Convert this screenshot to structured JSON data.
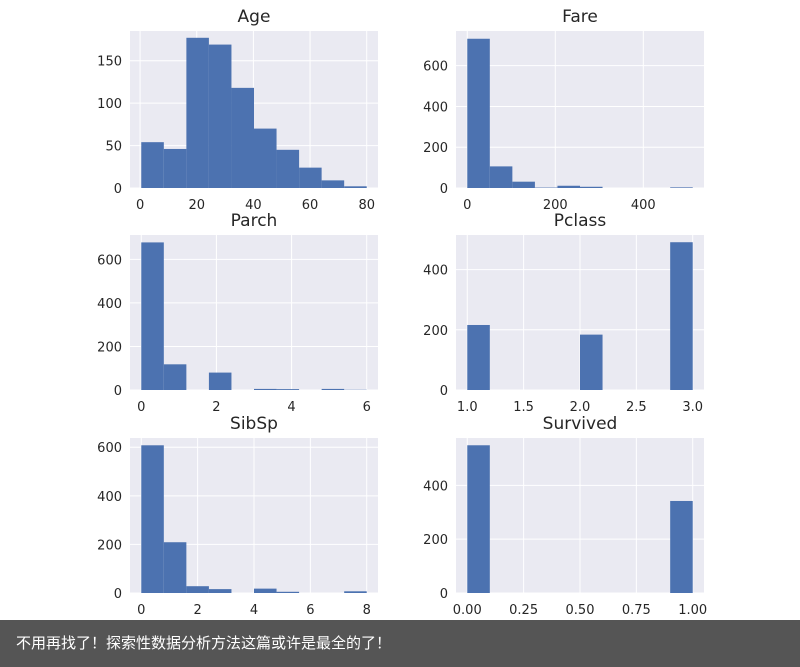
{
  "chart_data": [
    {
      "type": "bar",
      "title": "Age",
      "bin_edges": [
        0.42,
        8.38,
        16.34,
        24.29,
        32.25,
        40.21,
        48.17,
        56.13,
        64.08,
        72.04,
        80.0
      ],
      "values": [
        54,
        46,
        177,
        169,
        118,
        70,
        45,
        24,
        9,
        2
      ],
      "xlim": [
        -3.56,
        83.98
      ],
      "ylim": [
        0,
        185
      ],
      "xticks": [
        0,
        20,
        40,
        60,
        80
      ],
      "yticks": [
        0,
        50,
        100,
        150
      ],
      "xtick_labels": [
        "0",
        "20",
        "40",
        "60",
        "80"
      ],
      "ytick_labels": [
        "0",
        "50",
        "100",
        "150"
      ],
      "color": "#4c72b0",
      "grid": true
    },
    {
      "type": "bar",
      "title": "Fare",
      "bin_edges": [
        0,
        51.23,
        102.47,
        153.7,
        204.93,
        256.16,
        307.4,
        358.63,
        409.86,
        461.1,
        512.33
      ],
      "values": [
        732,
        106,
        31,
        2,
        11,
        6,
        0,
        0,
        0,
        3
      ],
      "xlim": [
        -25.6,
        537.9
      ],
      "ylim": [
        0,
        770
      ],
      "xticks": [
        0,
        200,
        400
      ],
      "yticks": [
        0,
        200,
        400,
        600
      ],
      "xtick_labels": [
        "0",
        "200",
        "400"
      ],
      "ytick_labels": [
        "0",
        "200",
        "400",
        "600"
      ],
      "color": "#4c72b0",
      "grid": true
    },
    {
      "type": "bar",
      "title": "Parch",
      "bin_edges": [
        0,
        0.6,
        1.2,
        1.8,
        2.4,
        3.0,
        3.6,
        4.2,
        4.8,
        5.4,
        6.0
      ],
      "values": [
        678,
        118,
        0,
        80,
        0,
        5,
        4,
        0,
        5,
        1
      ],
      "xlim": [
        -0.3,
        6.3
      ],
      "ylim": [
        0,
        712
      ],
      "xticks": [
        0,
        2,
        4,
        6
      ],
      "yticks": [
        0,
        200,
        400,
        600
      ],
      "xtick_labels": [
        "0",
        "2",
        "4",
        "6"
      ],
      "ytick_labels": [
        "0",
        "200",
        "400",
        "600"
      ],
      "color": "#4c72b0",
      "grid": true
    },
    {
      "type": "bar",
      "title": "Pclass",
      "bin_edges": [
        1.0,
        1.2,
        1.4,
        1.6,
        1.8,
        2.0,
        2.2,
        2.4,
        2.6,
        2.8,
        3.0
      ],
      "values": [
        216,
        0,
        0,
        0,
        0,
        184,
        0,
        0,
        0,
        491
      ],
      "xlim": [
        0.9,
        3.1
      ],
      "ylim": [
        0,
        515
      ],
      "xticks": [
        1.0,
        1.5,
        2.0,
        2.5,
        3.0
      ],
      "yticks": [
        0,
        200,
        400
      ],
      "xtick_labels": [
        "1.0",
        "1.5",
        "2.0",
        "2.5",
        "3.0"
      ],
      "ytick_labels": [
        "0",
        "200",
        "400"
      ],
      "color": "#4c72b0",
      "grid": true
    },
    {
      "type": "bar",
      "title": "SibSp",
      "bin_edges": [
        0,
        0.8,
        1.6,
        2.4,
        3.2,
        4.0,
        4.8,
        5.6,
        6.4,
        7.2,
        8.0
      ],
      "values": [
        608,
        209,
        28,
        16,
        0,
        18,
        5,
        0,
        0,
        7
      ],
      "xlim": [
        -0.4,
        8.4
      ],
      "ylim": [
        0,
        638
      ],
      "xticks": [
        0,
        2,
        4,
        6,
        8
      ],
      "yticks": [
        0,
        200,
        400,
        600
      ],
      "xtick_labels": [
        "0",
        "2",
        "4",
        "6",
        "8"
      ],
      "ytick_labels": [
        "0",
        "200",
        "400",
        "600"
      ],
      "color": "#4c72b0",
      "grid": true
    },
    {
      "type": "bar",
      "title": "Survived",
      "bin_edges": [
        0,
        0.1,
        0.2,
        0.3,
        0.4,
        0.5,
        0.6,
        0.7,
        0.8,
        0.9,
        1.0
      ],
      "values": [
        549,
        0,
        0,
        0,
        0,
        0,
        0,
        0,
        0,
        342
      ],
      "xlim": [
        -0.05,
        1.05
      ],
      "ylim": [
        0,
        576
      ],
      "xticks": [
        0.0,
        0.25,
        0.5,
        0.75,
        1.0
      ],
      "yticks": [
        0,
        200,
        400
      ],
      "xtick_labels": [
        "0.00",
        "0.25",
        "0.50",
        "0.75",
        "1.00"
      ],
      "ytick_labels": [
        "0",
        "200",
        "400"
      ],
      "color": "#4c72b0",
      "grid": true
    }
  ],
  "caption": {
    "text": "不用再找了！探索性数据分析方法这篇或许是最全的了！"
  },
  "colors": {
    "plot_background": "#eaeaf2",
    "grid": "#ffffff",
    "bar": "#4c72b0",
    "text": "#262626"
  }
}
